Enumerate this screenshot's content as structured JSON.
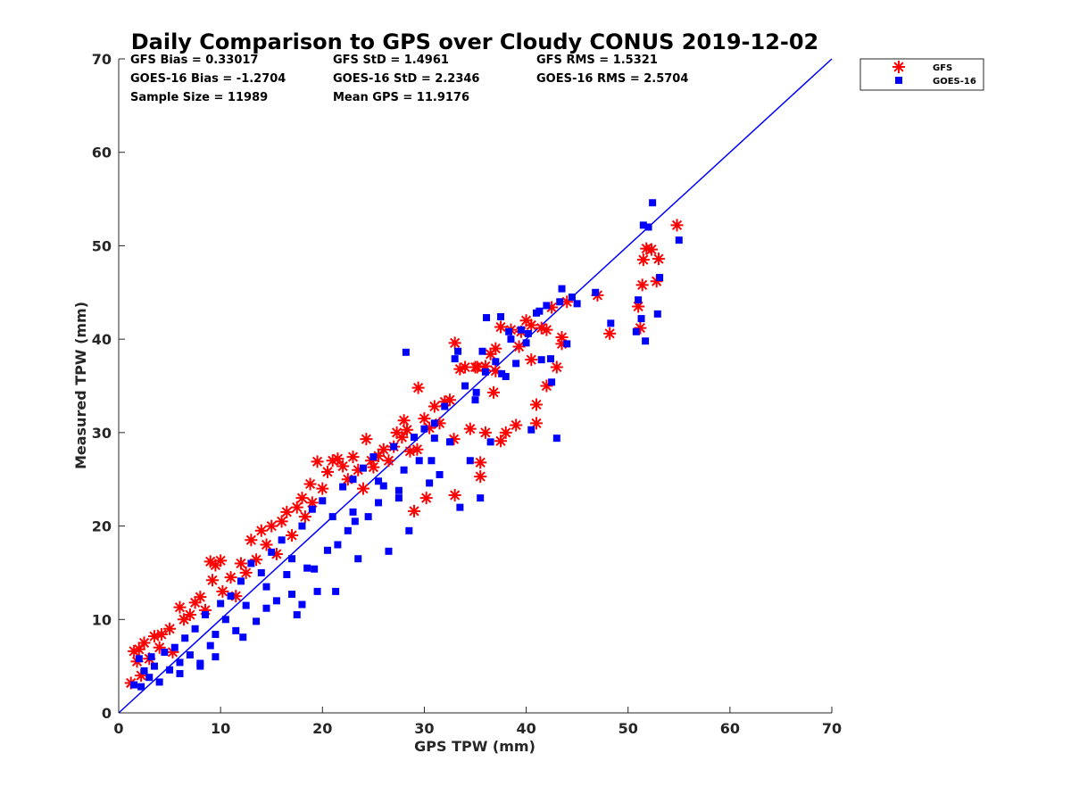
{
  "chart_data": {
    "type": "scatter",
    "title": "Daily Comparison to GPS over Cloudy CONUS 2019-12-02",
    "xlabel": "GPS TPW (mm)",
    "ylabel": "Measured TPW (mm)",
    "xlim": [
      0,
      70
    ],
    "ylim": [
      0,
      70
    ],
    "xticks": [
      0,
      10,
      20,
      30,
      40,
      50,
      60,
      70
    ],
    "yticks": [
      0,
      10,
      20,
      30,
      40,
      50,
      60,
      70
    ],
    "grid": false,
    "legend_position": "outside top-right",
    "stats": [
      [
        "GFS Bias = 0.33017",
        "GFS StD = 1.4961",
        "GFS RMS = 1.5321"
      ],
      [
        "GOES-16 Bias = -1.2704",
        "GOES-16 StD = 2.2346",
        "GOES-16 RMS = 2.5704"
      ],
      [
        "Sample Size = 11989",
        "Mean GPS = 11.9176"
      ]
    ],
    "reference_line": {
      "x": [
        0,
        70
      ],
      "y": [
        0,
        70
      ],
      "color": "#0000ff"
    },
    "series": [
      {
        "name": "GFS",
        "marker": "asterisk",
        "color": "#ff0000",
        "x": [
          1.2,
          1.5,
          1.8,
          2.0,
          2.2,
          2.5,
          3.0,
          3.5,
          4.0,
          4.2,
          5.0,
          5.3,
          6.0,
          6.4,
          7.0,
          7.5,
          8.0,
          8.5,
          9.0,
          9.2,
          9.5,
          10.0,
          10.2,
          11.0,
          11.5,
          12.0,
          12.5,
          13.0,
          13.5,
          14.0,
          14.5,
          15.0,
          15.5,
          16.0,
          16.5,
          17.0,
          17.5,
          18.0,
          18.3,
          18.8,
          19.0,
          19.5,
          20.0,
          20.5,
          21.0,
          21.5,
          22.0,
          22.5,
          23.0,
          23.5,
          24.0,
          24.3,
          24.8,
          25.0,
          25.5,
          26.0,
          26.5,
          27.0,
          27.3,
          27.8,
          28.0,
          28.3,
          28.6,
          29.0,
          29.4,
          30.0,
          30.5,
          31.0,
          31.5,
          32.0,
          32.5,
          33.0,
          33.5,
          34.0,
          34.5,
          35.0,
          35.5,
          36.0,
          36.5,
          37.0,
          37.5,
          38.0,
          38.5,
          39.0,
          39.5,
          40.0,
          40.5,
          41.0,
          41.5,
          42.0,
          42.5,
          43.0,
          43.5,
          44.0,
          47.0,
          48.2,
          51.0,
          51.2,
          51.4,
          51.5,
          51.8,
          52.3,
          52.8,
          53.0,
          54.8,
          33.0,
          29.3,
          35.5,
          36.0,
          37.5,
          40.5,
          42.0,
          43.5,
          32.9,
          30.2,
          36.8,
          39.3,
          41.0,
          37.0,
          35.2
        ],
        "y": [
          3.2,
          6.6,
          5.5,
          6.8,
          4.0,
          7.5,
          5.8,
          8.2,
          7.0,
          8.4,
          9.0,
          6.5,
          11.3,
          10.0,
          10.5,
          11.8,
          12.4,
          11.0,
          16.2,
          14.2,
          15.8,
          16.3,
          13.0,
          14.5,
          12.5,
          16.0,
          15.0,
          18.5,
          16.4,
          19.5,
          18.0,
          20.0,
          17.0,
          20.5,
          21.5,
          19.0,
          22.0,
          23.0,
          21.0,
          24.5,
          22.5,
          26.9,
          24.0,
          25.8,
          27.0,
          27.2,
          26.4,
          25.0,
          27.4,
          26.0,
          24.0,
          29.3,
          27.0,
          26.3,
          27.5,
          28.2,
          27.0,
          28.5,
          30.0,
          29.5,
          31.3,
          30.3,
          28.0,
          21.6,
          34.8,
          31.5,
          30.5,
          32.8,
          31.0,
          33.3,
          33.5,
          39.6,
          36.8,
          37.0,
          30.4,
          37.0,
          26.8,
          37.1,
          38.4,
          39.0,
          41.3,
          30.0,
          41.0,
          30.8,
          40.8,
          42.0,
          41.5,
          33.0,
          41.2,
          41.0,
          43.4,
          37.0,
          39.5,
          44.0,
          44.7,
          40.6,
          43.5,
          41.2,
          45.8,
          48.5,
          49.7,
          49.6,
          46.2,
          48.6,
          52.2,
          23.3,
          28.2,
          25.3,
          30.0,
          29.1,
          37.8,
          35.0,
          40.2,
          29.3,
          23.0,
          34.3,
          39.2,
          31.0,
          36.6,
          37.0
        ]
      },
      {
        "name": "GOES-16",
        "marker": "square",
        "color": "#0000ff",
        "x": [
          1.5,
          2.0,
          2.2,
          2.5,
          3.0,
          3.2,
          3.5,
          4.0,
          4.5,
          5.0,
          5.5,
          6.0,
          6.5,
          7.0,
          7.5,
          8.0,
          8.5,
          9.0,
          9.5,
          10.0,
          10.5,
          11.0,
          11.5,
          12.0,
          12.5,
          13.0,
          13.5,
          14.0,
          14.5,
          15.0,
          15.5,
          16.0,
          16.5,
          17.0,
          17.5,
          18.0,
          18.5,
          19.0,
          19.5,
          20.0,
          20.5,
          21.0,
          21.5,
          22.0,
          22.5,
          23.0,
          23.5,
          24.0,
          24.5,
          25.0,
          25.5,
          26.0,
          26.5,
          27.0,
          27.5,
          28.0,
          28.5,
          29.0,
          29.5,
          30.0,
          30.5,
          31.0,
          31.5,
          32.0,
          32.5,
          33.0,
          33.5,
          34.0,
          34.5,
          35.0,
          35.5,
          36.0,
          36.5,
          37.0,
          37.5,
          38.0,
          38.5,
          39.0,
          39.5,
          40.0,
          40.5,
          41.0,
          41.5,
          42.0,
          42.5,
          43.0,
          43.5,
          44.0,
          44.5,
          45.0,
          46.8,
          48.3,
          50.8,
          51.0,
          51.3,
          51.5,
          51.7,
          52.0,
          52.4,
          52.9,
          53.1,
          55.0,
          28.2,
          33.3,
          35.7,
          36.1,
          38.3,
          41.3,
          43.3,
          23.0,
          18.0,
          21.3,
          25.5,
          30.7,
          42.4,
          37.6,
          40.2,
          35.1,
          31.0,
          27.5,
          19.2,
          23.2,
          17.0,
          12.2,
          14.5,
          9.5,
          6.0,
          8.0
        ],
        "y": [
          3.0,
          5.8,
          2.8,
          4.5,
          3.8,
          6.0,
          5.0,
          3.3,
          6.5,
          4.6,
          7.0,
          5.4,
          8.0,
          6.2,
          9.0,
          5.3,
          10.5,
          7.2,
          8.4,
          11.7,
          10.0,
          12.5,
          8.8,
          14.1,
          11.5,
          16.0,
          9.8,
          15.0,
          13.5,
          17.2,
          12.0,
          18.5,
          14.8,
          16.5,
          10.5,
          20.0,
          15.5,
          21.8,
          13.0,
          22.7,
          17.4,
          21.0,
          18.0,
          24.2,
          19.5,
          25.0,
          16.5,
          26.2,
          21.0,
          27.4,
          22.5,
          24.3,
          17.3,
          28.5,
          23.0,
          26.0,
          19.5,
          29.5,
          27.0,
          30.4,
          24.6,
          31.0,
          25.5,
          32.8,
          29.0,
          37.9,
          22.0,
          35.0,
          27.0,
          33.5,
          23.0,
          36.5,
          29.0,
          37.6,
          42.4,
          36.0,
          40.0,
          37.4,
          41.0,
          39.6,
          30.3,
          42.8,
          37.8,
          43.6,
          35.4,
          29.4,
          45.4,
          39.5,
          44.5,
          43.8,
          45.0,
          41.7,
          40.8,
          44.2,
          42.2,
          52.2,
          39.8,
          52.0,
          54.6,
          42.7,
          46.6,
          50.6,
          38.6,
          38.7,
          38.7,
          42.3,
          40.8,
          43.0,
          44.0,
          21.5,
          11.6,
          13.0,
          24.8,
          27.0,
          37.9,
          36.3,
          40.6,
          34.3,
          29.4,
          23.8,
          15.4,
          20.5,
          12.7,
          8.1,
          11.2,
          6.0,
          4.2,
          5.0
        ]
      }
    ]
  }
}
